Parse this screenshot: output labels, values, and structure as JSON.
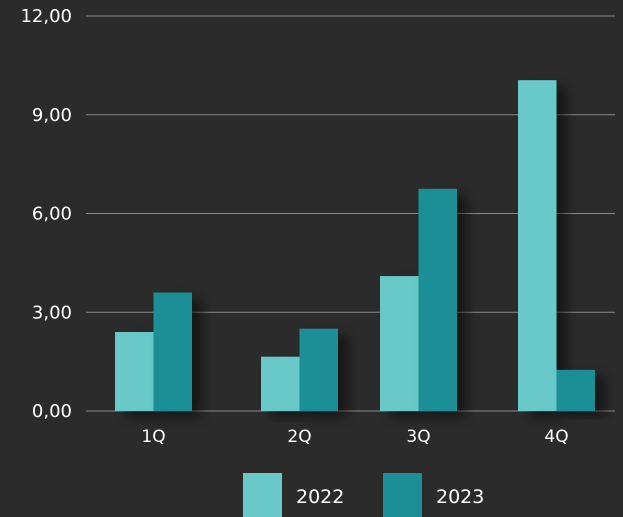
{
  "chart_data": {
    "type": "bar",
    "title": "",
    "xlabel": "",
    "ylabel": "",
    "categories": [
      "1Q",
      "2Q",
      "3Q",
      "4Q"
    ],
    "series": [
      {
        "name": "2022",
        "values": [
          2.4,
          1.65,
          4.1,
          10.05
        ]
      },
      {
        "name": "2023",
        "values": [
          3.6,
          2.5,
          6.75,
          1.25
        ]
      }
    ],
    "ylim": [
      0,
      12
    ],
    "yticks": [
      0,
      3,
      6,
      9,
      12
    ],
    "ytick_labels": [
      "0,00",
      "3,00",
      "6,00",
      "9,00",
      "12,00"
    ],
    "grid": true,
    "legend_position": "bottom",
    "colors": {
      "background": "#2b2b2b",
      "series_2022": "#68c9c8",
      "series_2023": "#1c8f96",
      "gridline": "#8a8a8a",
      "text": "#ffffff"
    }
  }
}
